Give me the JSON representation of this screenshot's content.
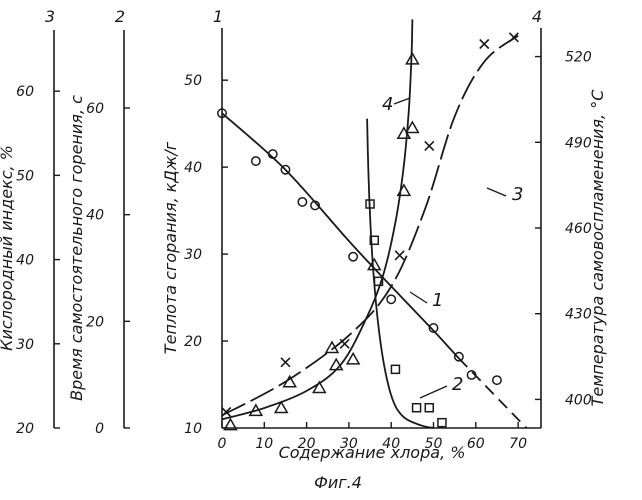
{
  "chart_data": {
    "type": "scatter",
    "title": "",
    "caption": "Фиг.4",
    "xlabel": "Содержание хлора, %",
    "xlim": [
      0,
      75
    ],
    "x_ticks": [
      0,
      10,
      20,
      30,
      40,
      50,
      60,
      70
    ],
    "axes": [
      {
        "id": "1",
        "label": "Теплота сгорания, кДж/г",
        "ylim": [
          10,
          56
        ],
        "ticks": [
          10,
          20,
          30,
          40,
          50
        ]
      },
      {
        "id": "2",
        "label": "Время самостоятельного горения, с",
        "ylim": [
          0,
          75
        ],
        "ticks": [
          0,
          20,
          40,
          60
        ]
      },
      {
        "id": "3",
        "label": "Кислородный индекс, %",
        "ylim": [
          20,
          67.5
        ],
        "ticks": [
          20,
          30,
          40,
          50,
          60
        ]
      },
      {
        "id": "4",
        "label": "Температура самовоспламенения, °С",
        "ylim": [
          390,
          530
        ],
        "ticks": [
          400,
          430,
          460,
          490,
          520
        ]
      }
    ],
    "series": [
      {
        "name": "1",
        "axis": "1",
        "marker": "circle",
        "points": [
          [
            0,
            46.2
          ],
          [
            8,
            40.7
          ],
          [
            12,
            41.5
          ],
          [
            15,
            39.7
          ],
          [
            19,
            36.0
          ],
          [
            22,
            35.6
          ],
          [
            31,
            29.7
          ],
          [
            40,
            24.8
          ],
          [
            50,
            21.5
          ],
          [
            56,
            18.2
          ],
          [
            59,
            16.1
          ],
          [
            65,
            15.5
          ]
        ],
        "curve": [
          [
            0,
            46.2
          ],
          [
            15,
            39.7
          ],
          [
            30,
            31.5
          ],
          [
            40,
            26.3
          ],
          [
            50,
            21.2
          ],
          [
            56,
            18.0
          ],
          [
            62,
            15.0
          ],
          [
            68,
            12.0
          ],
          [
            72,
            10.0
          ]
        ],
        "dashed_from_x": 57
      },
      {
        "name": "2",
        "axis": "2",
        "marker": "square",
        "points": [
          [
            35,
            42.0
          ],
          [
            36,
            35.2
          ],
          [
            37,
            27.5
          ],
          [
            41,
            11.0
          ],
          [
            46,
            3.8
          ],
          [
            49,
            3.8
          ],
          [
            52,
            1.0
          ]
        ],
        "curve": [
          [
            34.3,
            58.0
          ],
          [
            34.6,
            48.0
          ],
          [
            35.1,
            38.0
          ],
          [
            35.9,
            28.0
          ],
          [
            37.0,
            19.0
          ],
          [
            38.5,
            11.0
          ],
          [
            40.5,
            5.0
          ],
          [
            43.0,
            2.0
          ],
          [
            47.0,
            0.5
          ],
          [
            50.0,
            0.0
          ]
        ]
      },
      {
        "name": "3",
        "axis": "3",
        "marker": "cross",
        "points": [
          [
            1,
            21.9
          ],
          [
            15,
            27.8
          ],
          [
            29,
            30.0
          ],
          [
            42,
            40.5
          ],
          [
            49,
            53.5
          ],
          [
            62,
            65.6
          ],
          [
            69,
            66.4
          ]
        ],
        "curve": [
          [
            0,
            21.5
          ],
          [
            15,
            25.5
          ],
          [
            30,
            31.0
          ],
          [
            40,
            36.8
          ],
          [
            48,
            46.0
          ],
          [
            55,
            57.0
          ],
          [
            62,
            63.5
          ],
          [
            70,
            66.6
          ]
        ]
      },
      {
        "name": "4",
        "axis": "4",
        "marker": "triangle",
        "points": [
          [
            2,
            391
          ],
          [
            8,
            396
          ],
          [
            14,
            397
          ],
          [
            16,
            406
          ],
          [
            23,
            404
          ],
          [
            26,
            418
          ],
          [
            27,
            412
          ],
          [
            31,
            414
          ],
          [
            36,
            447
          ],
          [
            43,
            473
          ],
          [
            43,
            493
          ],
          [
            45,
            495
          ],
          [
            45,
            519
          ]
        ],
        "curve": [
          [
            0,
            393
          ],
          [
            10,
            397
          ],
          [
            20,
            403
          ],
          [
            28,
            412
          ],
          [
            34,
            428
          ],
          [
            38,
            443
          ],
          [
            41,
            462
          ],
          [
            43,
            482
          ],
          [
            44.2,
            502
          ],
          [
            44.8,
            520
          ],
          [
            45,
            533
          ]
        ]
      }
    ]
  }
}
